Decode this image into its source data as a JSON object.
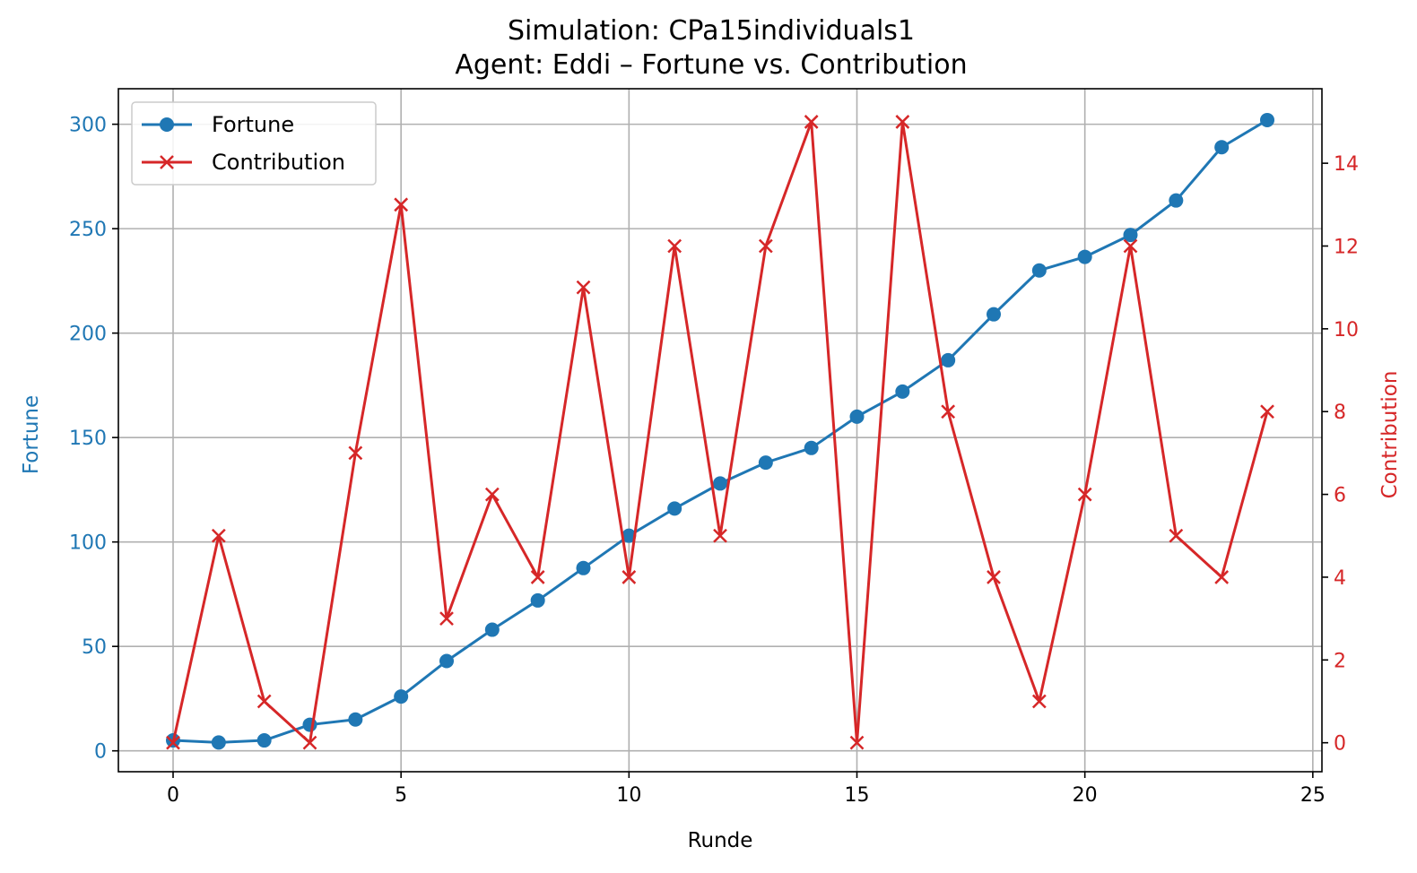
{
  "chart_data": {
    "type": "line",
    "title_line1": "Simulation: CPa15individuals1",
    "title_line2": "Agent: Eddi – Fortune vs. Contribution",
    "xlabel": "Runde",
    "ylabel_left": "Fortune",
    "ylabel_right": "Contribution",
    "x": [
      0,
      1,
      2,
      3,
      4,
      5,
      6,
      7,
      8,
      9,
      10,
      11,
      12,
      13,
      14,
      15,
      16,
      17,
      18,
      19,
      20,
      21,
      22,
      23,
      24
    ],
    "xlim": [
      -1.2,
      25.2
    ],
    "ylim_left": [
      -10,
      317
    ],
    "ylim_right": [
      -0.7,
      15.8
    ],
    "xticks": [
      0,
      5,
      10,
      15,
      20,
      25
    ],
    "yticks_left": [
      0,
      50,
      100,
      150,
      200,
      250,
      300
    ],
    "yticks_right": [
      0,
      2,
      4,
      6,
      8,
      10,
      12,
      14
    ],
    "grid": true,
    "legend_position": "upper-left",
    "series": [
      {
        "name": "Fortune",
        "axis": "left",
        "color": "#1f77b4",
        "marker": "circle",
        "values": [
          5,
          4,
          5,
          12.5,
          15,
          26,
          43,
          58,
          72,
          87.5,
          103,
          116,
          128,
          138,
          145,
          160,
          172,
          187,
          209,
          230,
          236.5,
          247,
          263.5,
          289,
          302
        ]
      },
      {
        "name": "Contribution",
        "axis": "right",
        "color": "#d62728",
        "marker": "x",
        "values": [
          0,
          5,
          1,
          0,
          7,
          13,
          3,
          6,
          4,
          11,
          4,
          12,
          5,
          12,
          15,
          0,
          15,
          8,
          4,
          1,
          6,
          12,
          5,
          4,
          8
        ]
      }
    ]
  }
}
